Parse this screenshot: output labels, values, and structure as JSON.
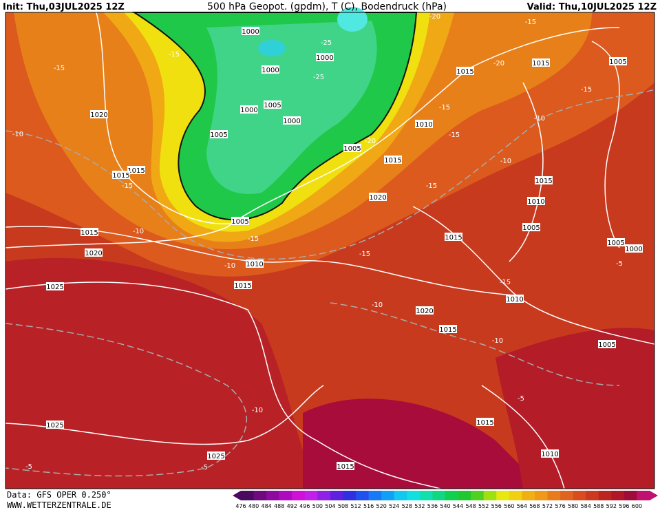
{
  "header": {
    "init": "Init: Thu,03JUL2025 12Z",
    "title": "500 hPa Geopot. (gpdm), T (C), Bodendruck (hPa)",
    "valid": "Valid: Thu,10JUL2025 12Z"
  },
  "footer": {
    "source": "Data: GFS OPER 0.250°",
    "url": "WWW.WETTERZENTRALE.DE"
  },
  "legend": {
    "labels": [
      476,
      480,
      484,
      488,
      492,
      496,
      500,
      504,
      508,
      512,
      516,
      520,
      524,
      528,
      532,
      536,
      540,
      544,
      548,
      552,
      556,
      560,
      564,
      568,
      572,
      576,
      580,
      584,
      588,
      592,
      596,
      600
    ],
    "colors": [
      "#4a0a5e",
      "#6e0a7e",
      "#8e0a9e",
      "#b00ac0",
      "#d010d8",
      "#c020e8",
      "#9020e8",
      "#6020e0",
      "#3030e0",
      "#2050f0",
      "#1878f8",
      "#10a0f8",
      "#10c8f0",
      "#10e0e0",
      "#10e0b0",
      "#10d880",
      "#10d050",
      "#20c830",
      "#50d020",
      "#a0e010",
      "#e8e810",
      "#f0d010",
      "#f0b010",
      "#f09818",
      "#e87c1c",
      "#e06420",
      "#d84c20",
      "#cc3820",
      "#bc2420",
      "#b01828",
      "#a00c38",
      "#c01070"
    ]
  },
  "map": {
    "pressure_labels": [
      "1000",
      "1000",
      "1000",
      "1000",
      "1005",
      "1000",
      "1005",
      "1005",
      "1015",
      "1015",
      "1020",
      "1015",
      "1005",
      "1015",
      "1010",
      "1015",
      "1020",
      "1015",
      "1010",
      "1005",
      "1005",
      "1000",
      "1015",
      "1010",
      "1020",
      "1015",
      "1005",
      "1015",
      "1020",
      "1025",
      "1010",
      "1015",
      "1005",
      "1025",
      "1025",
      "1015",
      "1010",
      "1015"
    ],
    "temperature_labels": [
      "-25",
      "-25",
      "-20",
      "-15",
      "-15",
      "-15",
      "-20",
      "-15",
      "-15",
      "-10",
      "-15",
      "-20",
      "-10",
      "-10",
      "-15",
      "-15",
      "-10",
      "-15",
      "-10",
      "-15",
      "-10",
      "-15",
      "-10",
      "-5",
      "-5",
      "-10",
      "-5",
      "-5"
    ]
  }
}
